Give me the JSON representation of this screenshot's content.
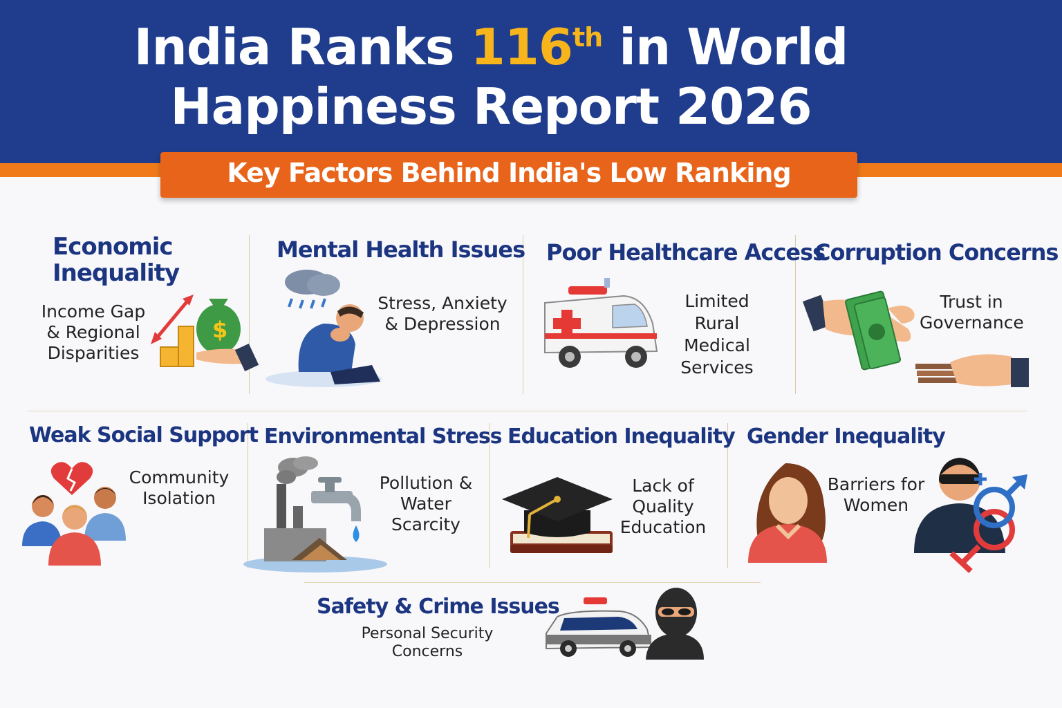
{
  "header": {
    "title_part1": "India Ranks",
    "rank_number": "116",
    "rank_suffix": "th",
    "title_part2": "in World",
    "title_line2": "Happiness Report 2026",
    "subtitle": "Key Factors Behind India's Low Ranking"
  },
  "factors": [
    {
      "title_line1": "Economic",
      "title_line2": "Inequality",
      "desc_line1": "Income Gap",
      "desc_line2": "& Regional",
      "desc_line3": "Disparities",
      "icon": "money-bag-icon"
    },
    {
      "title": "Mental Health Issues",
      "desc_line1": "Stress, Anxiety",
      "desc_line2": "& Depression",
      "icon": "distressed-person-icon"
    },
    {
      "title": "Poor Healthcare Access",
      "desc_line1": "Limited",
      "desc_line2": "Rural",
      "desc_line3": "Medical",
      "desc_line4": "Services",
      "icon": "ambulance-icon"
    },
    {
      "title": "Corruption Concerns",
      "desc_line1": "Trust in",
      "desc_line2": "Governance",
      "icon": "bribe-hands-icon"
    },
    {
      "title": "Weak Social Support",
      "desc_line1": "Community",
      "desc_line2": "Isolation",
      "icon": "broken-heart-people-icon"
    },
    {
      "title": "Environmental Stress",
      "desc_line1": "Pollution &",
      "desc_line2": "Water Scarcity",
      "icon": "factory-tap-icon"
    },
    {
      "title": "Education Inequality",
      "desc_line1": "Lack of Quality",
      "desc_line2": "Education",
      "icon": "graduation-cap-icon"
    },
    {
      "title": "Gender Inequality",
      "desc_line1": "Barriers for",
      "desc_line2": "Women",
      "icon": "gender-symbols-icon"
    },
    {
      "title": "Safety & Crime Issues",
      "desc": "Personal Security Concerns",
      "icon": "police-car-thief-icon"
    }
  ],
  "colors": {
    "header_blue": "#1f3d8c",
    "accent_orange": "#e8641a",
    "rank_gold": "#f7b51b",
    "heading_navy": "#1c3580"
  }
}
